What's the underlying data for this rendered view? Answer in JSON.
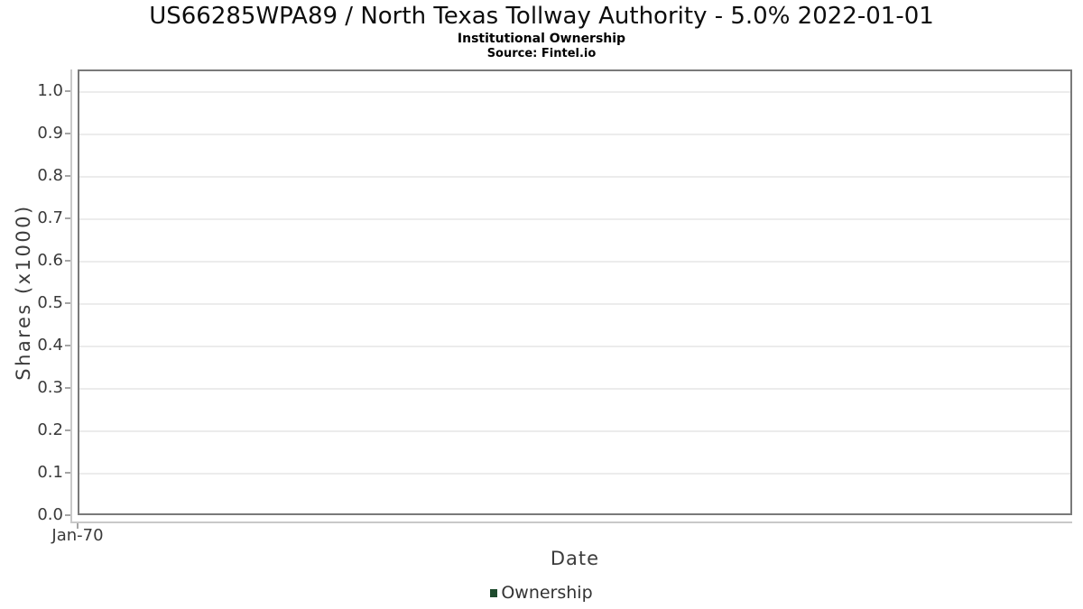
{
  "chart_data": {
    "type": "bar",
    "title": "US66285WPA89 / North Texas Tollway Authority - 5.0% 2022-01-01",
    "subtitle": "Institutional Ownership",
    "source": "Source: Fintel.io",
    "xlabel": "Date",
    "ylabel": "Shares (x1000)",
    "x_tick_labels": [
      "Jan-70"
    ],
    "y_ticks": [
      0.0,
      0.1,
      0.2,
      0.3,
      0.4,
      0.5,
      0.6,
      0.7,
      0.8,
      0.9,
      1.0
    ],
    "ylim": [
      0,
      1.05
    ],
    "grid": "horizontal-only",
    "legend_position": "bottom-center",
    "series": [
      {
        "name": "Ownership",
        "marker": "square",
        "color": "#1e4b2d",
        "x": [],
        "values": []
      }
    ],
    "colors": {
      "background": "#ffffff",
      "plot_border": "#7a7a7a",
      "gridline": "#ececec",
      "axis_line": "#c9c9c9",
      "tick_mark": "#a5a5a5",
      "tick_label_text": "#3a3a3a",
      "axis_label_text": "#3c3c3c",
      "title_text": "#0d0d0d",
      "legend_swatch": "#1e4b2d"
    }
  }
}
